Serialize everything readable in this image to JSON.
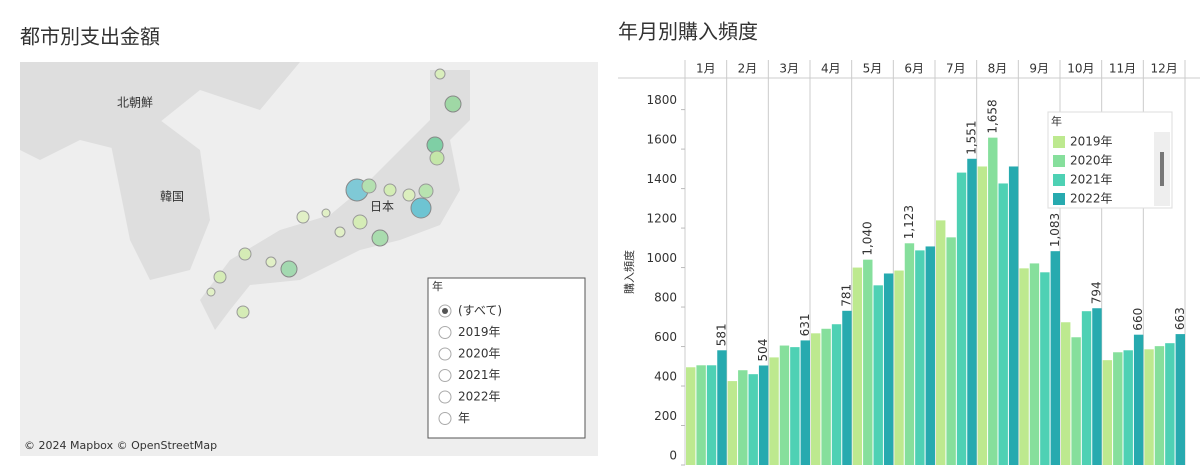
{
  "left_panel": {
    "title": "都市別支出金額",
    "map_labels": [
      "北朝鮮",
      "韓国",
      "日本"
    ],
    "attribution": "© 2024 Mapbox © OpenStreetMap",
    "filter": {
      "title": "年",
      "options": [
        "(すべて)",
        "2019年",
        "2020年",
        "2021年",
        "2022年",
        "年"
      ]
    }
  },
  "chart_data": {
    "type": "bar",
    "title": "年月別購入頻度",
    "y_label": "購入頻度",
    "categories": [
      "1月",
      "2月",
      "3月",
      "4月",
      "5月",
      "6月",
      "7月",
      "8月",
      "9月",
      "10月",
      "11月",
      "12月"
    ],
    "series": [
      {
        "name": "2019年",
        "color": "#bde98f",
        "values": [
          495,
          425,
          545,
          667,
          1000,
          985,
          1239,
          1512,
          996,
          723,
          531,
          586
        ],
        "value_labels": [
          null,
          null,
          null,
          null,
          null,
          null,
          null,
          null,
          null,
          null,
          null,
          null
        ]
      },
      {
        "name": "2020年",
        "color": "#86df9c",
        "values": [
          505,
          480,
          605,
          690,
          1040,
          1123,
          1153,
          1658,
          1021,
          647,
          571,
          602
        ],
        "value_labels": [
          null,
          null,
          null,
          null,
          "1,040",
          "1,123",
          null,
          "1,658",
          null,
          null,
          null,
          null
        ]
      },
      {
        "name": "2021年",
        "color": "#4ed1b4",
        "values": [
          505,
          460,
          597,
          713,
          910,
          1087,
          1481,
          1426,
          976,
          779,
          581,
          617
        ],
        "value_labels": [
          null,
          null,
          null,
          null,
          null,
          null,
          null,
          null,
          null,
          null,
          null,
          null
        ]
      },
      {
        "name": "2022年",
        "color": "#27aaaf",
        "values": [
          581,
          504,
          631,
          781,
          970,
          1107,
          1551,
          1512,
          1083,
          794,
          660,
          663
        ],
        "value_labels": [
          "581",
          "504",
          "631",
          "781",
          null,
          null,
          "1,551",
          null,
          "1,083",
          "794",
          "660",
          "663"
        ]
      }
    ],
    "ylim": [
      0,
      1950
    ],
    "yticks": [
      0,
      200,
      400,
      600,
      800,
      1000,
      1200,
      1400,
      1600,
      1800
    ],
    "legend": {
      "title": "年",
      "position": "top-right"
    },
    "grid": false
  }
}
